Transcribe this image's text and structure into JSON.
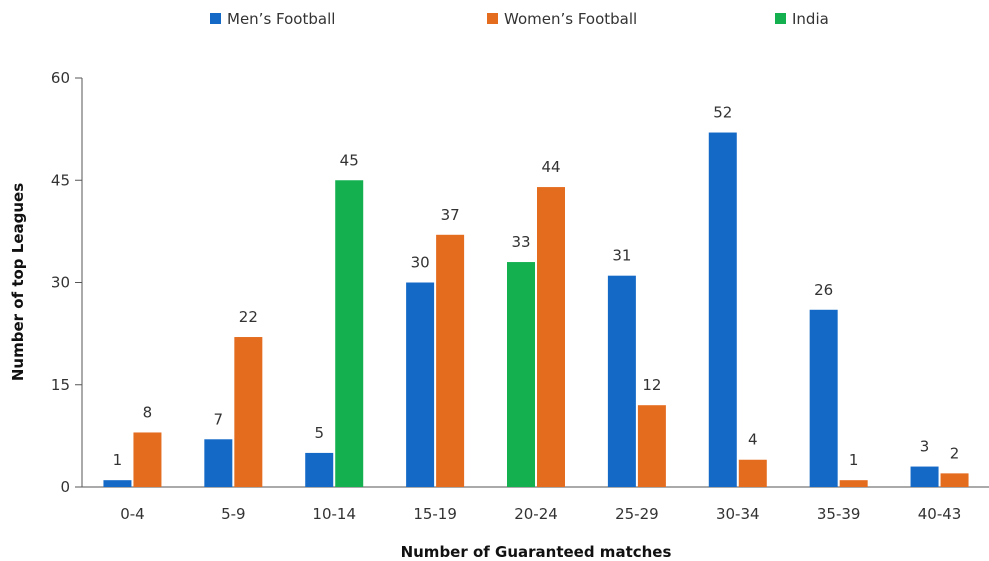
{
  "chart_data": {
    "type": "bar",
    "xlabel": "Number of Guaranteed matches",
    "ylabel": "Number of top Leagues",
    "ylim": [
      0,
      60
    ],
    "yticks": [
      0,
      15,
      30,
      45,
      60
    ],
    "grid": false,
    "legend_position": "top",
    "categories": [
      "0-4",
      "5-9",
      "10-14",
      "15-19",
      "20-24",
      "25-29",
      "30-34",
      "35-39",
      "40-43"
    ],
    "groups": [
      [
        {
          "series": "Men's Football",
          "value": 1
        },
        {
          "series": "Women's Football",
          "value": 8
        }
      ],
      [
        {
          "series": "Men's Football",
          "value": 7
        },
        {
          "series": "Women's Football",
          "value": 22
        }
      ],
      [
        {
          "series": "Men's Football",
          "value": 5
        },
        {
          "series": "India",
          "value": 45
        }
      ],
      [
        {
          "series": "Men's Football",
          "value": 30
        },
        {
          "series": "Women's Football",
          "value": 37
        }
      ],
      [
        {
          "series": "India",
          "value": 33
        },
        {
          "series": "Women's Football",
          "value": 44
        }
      ],
      [
        {
          "series": "Men's Football",
          "value": 31
        },
        {
          "series": "Women's Football",
          "value": 12
        }
      ],
      [
        {
          "series": "Men's Football",
          "value": 52
        },
        {
          "series": "Women's Football",
          "value": 4
        }
      ],
      [
        {
          "series": "Men's Football",
          "value": 26
        },
        {
          "series": "Women's Football",
          "value": 1
        }
      ],
      [
        {
          "series": "Men's Football",
          "value": 3
        },
        {
          "series": "Women's Football",
          "value": 2
        }
      ]
    ],
    "series": [
      {
        "name": "Men’s Football",
        "key": "Men's Football",
        "color": "#1469c7"
      },
      {
        "name": "Women’s Football",
        "key": "Women's Football",
        "color": "#e46c1f"
      },
      {
        "name": "India",
        "key": "India",
        "color": "#14b050"
      }
    ]
  }
}
